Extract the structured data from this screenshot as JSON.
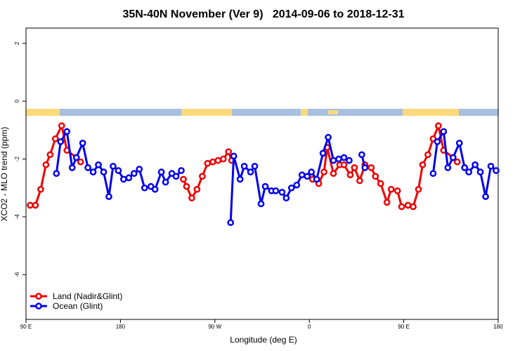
{
  "chart_data": {
    "type": "line",
    "title": "35N-40N November (Ver 9)   2014-09-06 to 2018-12-31",
    "x_label": "Longitude (deg E)",
    "y_label": "XCO2 - MLO trend (ppm)",
    "xlim": [
      90,
      540
    ],
    "ylim": [
      -7.55,
      2.53
    ],
    "xticks": [
      {
        "value": 90,
        "label": "90 E"
      },
      180,
      {
        "value": 270,
        "label": "90 W"
      },
      {
        "value": 360,
        "label": "0"
      },
      {
        "value": 450,
        "label": "90 E"
      },
      {
        "value": 540,
        "label": "180"
      }
    ],
    "yticks": [
      2,
      0,
      -2,
      -4,
      -6
    ],
    "legend": "bottom-left",
    "series": [
      {
        "name": "Land (Nadir&Glint)",
        "color": "#ee0000",
        "x": [
          94,
          99,
          104,
          109,
          113,
          118,
          124,
          129,
          138,
          142,
          null,
          240,
          243,
          248,
          253,
          258,
          263,
          268,
          273,
          278,
          283,
          286,
          null,
          363,
          369,
          374,
          377,
          383,
          389,
          393,
          399,
          403,
          408,
          413,
          419,
          423,
          428,
          434,
          438,
          444,
          448,
          454,
          459,
          464,
          468,
          473,
          478,
          483,
          488,
          497,
          501
        ],
        "values": [
          -3.6,
          -3.6,
          -3.05,
          -2.2,
          -1.85,
          -1.3,
          -0.85,
          -1.7,
          -1.95,
          -2.1,
          null,
          -2.7,
          -2.95,
          -3.35,
          -3.05,
          -2.6,
          -2.15,
          -2.1,
          -2.05,
          -2.0,
          -1.75,
          -2.05,
          null,
          -2.7,
          -2.85,
          -2.45,
          -1.6,
          -2.5,
          -2.2,
          -2.2,
          -2.55,
          -2.3,
          -2.75,
          -2.2,
          -2.3,
          -2.6,
          -2.85,
          -3.5,
          -3.05,
          -3.1,
          -3.65,
          -3.6,
          -3.65,
          -3.05,
          -2.2,
          -1.85,
          -1.3,
          -0.85,
          -1.7,
          -1.95,
          -2.1
        ]
      },
      {
        "name": "Ocean (Glint)",
        "color": "#0000ee",
        "x": [
          119,
          123,
          129,
          134,
          138,
          144,
          149,
          154,
          159,
          164,
          169,
          173,
          178,
          183,
          188,
          193,
          198,
          203,
          209,
          213,
          219,
          223,
          229,
          233,
          238,
          null,
          285,
          288,
          294,
          298,
          304,
          308,
          314,
          318,
          324,
          328,
          334,
          338,
          343,
          348,
          353,
          358,
          362,
          367,
          373,
          378,
          383,
          388,
          393,
          398,
          null,
          410,
          413,
          null,
          478,
          482,
          488,
          492,
          497,
          503,
          508,
          512,
          518,
          523,
          528,
          533,
          538
        ],
        "values": [
          -2.5,
          -1.4,
          -1.05,
          -2.3,
          -1.95,
          -1.45,
          -2.3,
          -2.45,
          -2.2,
          -2.45,
          -3.3,
          -2.25,
          -2.4,
          -2.7,
          -2.65,
          -2.5,
          -2.35,
          -3.0,
          -2.95,
          -3.05,
          -2.45,
          -2.8,
          -2.5,
          -2.6,
          -2.4,
          null,
          -4.2,
          -1.9,
          -2.7,
          -2.25,
          -2.45,
          -2.25,
          -3.55,
          -2.95,
          -3.1,
          -3.1,
          -3.15,
          -3.35,
          -3.0,
          -2.9,
          -2.55,
          -2.6,
          -2.45,
          -2.7,
          -1.8,
          -1.25,
          -2.05,
          -2.0,
          -1.95,
          -2.05,
          null,
          -1.85,
          -2.3,
          null,
          -2.5,
          -1.4,
          -1.05,
          -2.3,
          -1.95,
          -1.45,
          -2.3,
          -2.45,
          -2.2,
          -2.45,
          -3.3,
          -2.25,
          -2.4
        ]
      }
    ]
  }
}
